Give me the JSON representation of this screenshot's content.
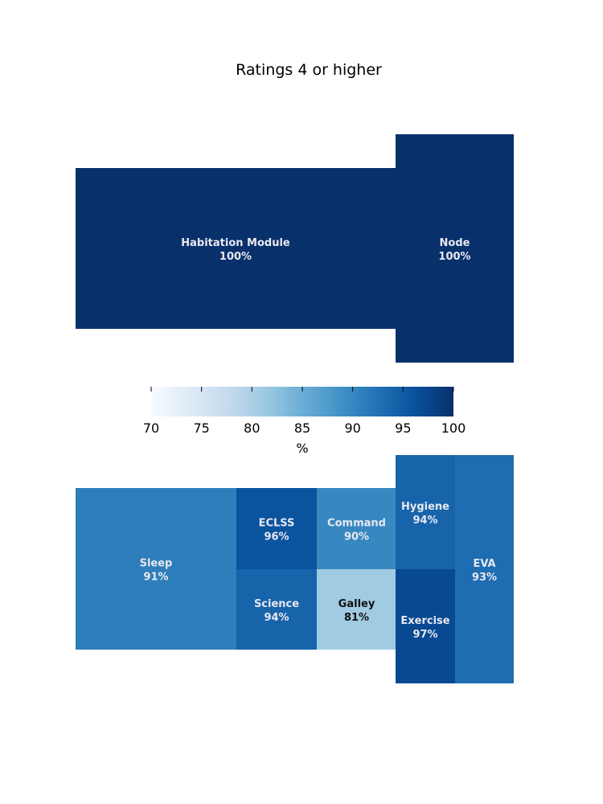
{
  "chart_data": {
    "type": "heatmap",
    "title": "Ratings 4 or higher",
    "colormap": "Blues",
    "colorbar": {
      "label": "%",
      "min": 70,
      "max": 100,
      "ticks": [
        70,
        75,
        80,
        85,
        90,
        95,
        100
      ]
    },
    "label_suffix": "%",
    "light_text_color": "#e8e8f0",
    "dark_text_color": "#111111",
    "upper_panel": [
      {
        "name": "Habitation Module",
        "value": 100
      },
      {
        "name": "Node",
        "value": 100
      }
    ],
    "lower_panel": [
      {
        "name": "Sleep",
        "value": 91
      },
      {
        "name": "ECLSS",
        "value": 96
      },
      {
        "name": "Command",
        "value": 90
      },
      {
        "name": "Science",
        "value": 94
      },
      {
        "name": "Galley",
        "value": 81
      },
      {
        "name": "Hygiene",
        "value": 94
      },
      {
        "name": "Exercise",
        "value": 97
      },
      {
        "name": "EVA",
        "value": 93
      }
    ]
  }
}
